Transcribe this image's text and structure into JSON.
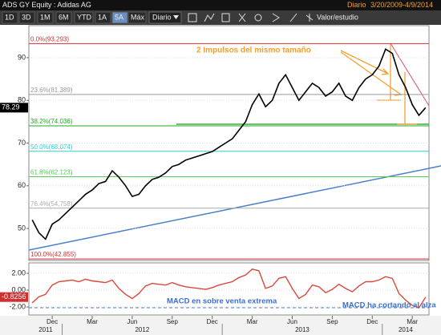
{
  "header": {
    "title": "ADS GY Equity : Adidas AG",
    "frequency": "Diario",
    "range": "3/20/2009-4/9/2014",
    "buttons": [
      "1D",
      "3D",
      "1M",
      "6M",
      "YTD",
      "1A",
      "5A",
      "Máx"
    ],
    "active_button": "5A",
    "period": "Diario",
    "study": "Valor/estudio"
  },
  "chart_data": [
    {
      "type": "line",
      "color": "#000000",
      "values": [
        52,
        49,
        47.5,
        51,
        52,
        53.5,
        55,
        56.5,
        58,
        59,
        60.5,
        61,
        63.5,
        62,
        60,
        57.5,
        58,
        60,
        61.5,
        62,
        63,
        64.5,
        65,
        66,
        66.5,
        67,
        67.5,
        68,
        69,
        70,
        71,
        73,
        75,
        79,
        81.5,
        78.5,
        80,
        84,
        86,
        83,
        80,
        82,
        84,
        83,
        81,
        82,
        84,
        81,
        80,
        83,
        85,
        86,
        88,
        92,
        91,
        86,
        83,
        79,
        76.5,
        78.29
      ],
      "ylim": [
        42.5,
        97.5
      ],
      "yticks": [
        50,
        60,
        70,
        80,
        90
      ],
      "last_value": 78.29,
      "levels": [
        {
          "value": 93.293,
          "label": "0.0%(93.293)",
          "color": "#cc3333"
        },
        {
          "value": 81.389,
          "label": "23.6%(81.389)",
          "color": "#999999"
        },
        {
          "value": 74.036,
          "label": "38.2%(74.036)",
          "color": "#22aa22"
        },
        {
          "value": 68.074,
          "label": "50.0%(68.074)",
          "color": "#33cccc"
        },
        {
          "value": 62.123,
          "label": "61.8%(62.123)",
          "color": "#55cc55"
        },
        {
          "value": 54.758,
          "label": "76.4%(54.758)",
          "color": "#aaaaaa"
        },
        {
          "value": 42.855,
          "label": "100.0%(42.855)",
          "color": "#cc3333"
        }
      ],
      "annotation": "2 Impulsos del mismo tamaño"
    },
    {
      "type": "line",
      "color": "#d84a3a",
      "values": [
        -1.5,
        -0.8,
        -0.5,
        0.6,
        1.0,
        1.1,
        1.2,
        1.0,
        1.3,
        1.1,
        1.0,
        0.9,
        1.2,
        0.2,
        -0.5,
        -1.0,
        -0.4,
        0.5,
        0.8,
        0.7,
        0.6,
        0.9,
        0.6,
        0.4,
        0.3,
        0.2,
        0.1,
        0.3,
        0.6,
        0.8,
        1.0,
        1.5,
        1.8,
        2.5,
        2.3,
        0.2,
        0.5,
        1.4,
        1.6,
        0.2,
        -1.0,
        -0.5,
        0.6,
        0.4,
        -0.3,
        0.1,
        0.7,
        0.2,
        -0.2,
        0.5,
        1.0,
        1.0,
        1.2,
        1.6,
        1.4,
        -0.4,
        -1.2,
        -1.8,
        -2.1,
        -0.8256
      ],
      "categories": [
        null,
        null,
        null,
        "Dec",
        null,
        null,
        null,
        null,
        null,
        "Mar",
        null,
        null,
        null,
        null,
        null,
        "Jun",
        null,
        null,
        null,
        null,
        null,
        "Sep",
        null,
        null,
        null,
        null,
        null,
        "Dec",
        null,
        null,
        null,
        null,
        null,
        "Mar",
        null,
        null,
        null,
        null,
        null,
        "Jun",
        null,
        null,
        null,
        null,
        null,
        "Sep",
        null,
        null,
        null,
        null,
        null,
        "Dec",
        null,
        null,
        null,
        null,
        null,
        "Mar",
        null,
        null
      ],
      "years": [
        "2011",
        "2012",
        "2013",
        "2014"
      ],
      "ylim": [
        -2.95,
        3.24
      ],
      "yticks": [
        {
          "value": 2,
          "label": "2.00"
        },
        {
          "value": 0,
          "label": "0.00"
        },
        {
          "value": -2,
          "label": "-2.00"
        }
      ],
      "last_value": -0.8256,
      "annotations": [
        "MACD en sobre venta extrema",
        "MACD ha cortando al alza"
      ]
    }
  ]
}
